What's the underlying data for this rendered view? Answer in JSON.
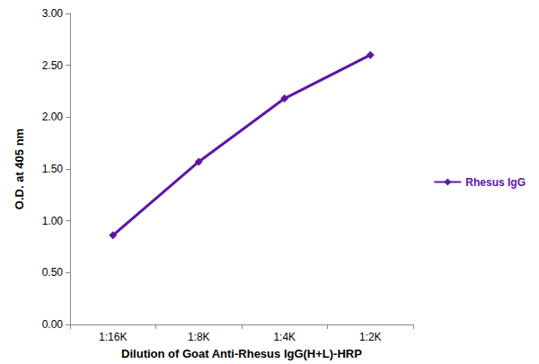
{
  "chart_data": {
    "type": "line",
    "x_label": "Dilution of Goat Anti-Rhesus IgG(H+L)-HRP",
    "y_label": "O.D. at 405 nm",
    "categories": [
      "1:16K",
      "1:8K",
      "1:4K",
      "1:2K"
    ],
    "series": [
      {
        "name": "Rhesus IgG",
        "color": "#5c16a6",
        "marker": "diamond",
        "values": [
          0.86,
          1.57,
          2.18,
          2.6
        ]
      }
    ],
    "ylim": [
      0,
      3
    ],
    "yticks": [
      {
        "value": 0,
        "label": "0.00"
      },
      {
        "value": 0.5,
        "label": "0.50"
      },
      {
        "value": 1,
        "label": "1.00"
      },
      {
        "value": 1.5,
        "label": "1.50"
      },
      {
        "value": 2,
        "label": "2.00"
      },
      {
        "value": 2.5,
        "label": "2.50"
      },
      {
        "value": 3,
        "label": "3.00"
      }
    ],
    "grid": false,
    "legend": "right"
  }
}
